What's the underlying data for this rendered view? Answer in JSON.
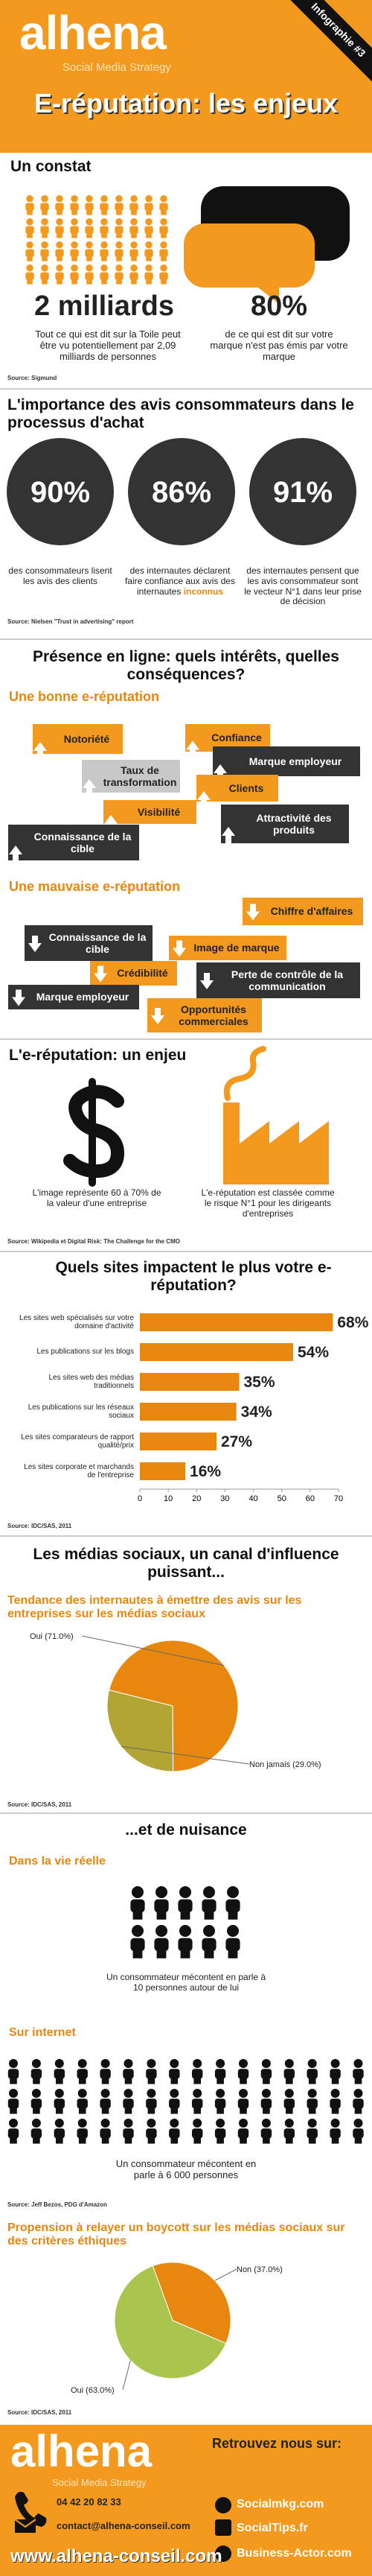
{
  "header": {
    "logo": "alhena",
    "tagline": "Social Media Strategy",
    "ribbon": "Infographie #3",
    "title": "E-réputation: les enjeux"
  },
  "constat": {
    "heading": "Un constat",
    "stats": [
      {
        "value": "2 milliards",
        "text": "Tout ce qui est dit sur la Toile peut être vu potentiellement par 2,09 milliards de personnes"
      },
      {
        "value": "80%",
        "text": "de ce qui est dit sur votre marque n'est pas émis par votre marque"
      }
    ],
    "source": "Source: Sigmund"
  },
  "avis": {
    "heading": "L'importance des avis consommateurs dans le processus d'achat",
    "stats": [
      {
        "value": "90%",
        "text": "des consommateurs lisent les avis des clients"
      },
      {
        "value": "86%",
        "text": "des internautes déclarent faire confiance aux avis des internautes",
        "highlight": "inconnus"
      },
      {
        "value": "91%",
        "text": "des internautes pensent que les avis consommateur sont le vecteur N°1 dans leur prise de décision"
      }
    ],
    "source": "Source: Nielsen \"Trust in advertising\" report"
  },
  "presence": {
    "heading": "Présence en ligne: quels intérêts, quelles conséquences?",
    "good": {
      "title": "Une bonne e-réputation",
      "items": [
        "Notoriété",
        "Confiance",
        "Taux de transformation",
        "Marque employeur",
        "Clients",
        "Visibilité",
        "Attractivité des produits",
        "Connaissance de la cible"
      ]
    },
    "bad": {
      "title": "Une mauvaise e-réputation",
      "items": [
        "Chiffre d'affaires",
        "Connaissance de la cible",
        "Image de marque",
        "Crédibilité",
        "Perte de contrôle de la communication",
        "Marque employeur",
        "Opportunités commerciales"
      ]
    }
  },
  "enjeu": {
    "heading": "L'e-réputation: un enjeu",
    "items": [
      "L'image représente 60 à 70% de la valeur d'une entreprise",
      "L'e-réputation est classée comme le risque N°1 pour les dirigeants d'entreprises"
    ],
    "source": "Source: Wikipedia et Digital Risk: The Challenge for the CMO"
  },
  "medias": {
    "heading": "Les médias sociaux, un canal d'influence puissant..."
  },
  "nuisance": {
    "heading": "...et de nuisance",
    "reel": {
      "title": "Dans la vie réelle",
      "text": "Un consommateur mécontent en parle à 10 personnes autour de lui"
    },
    "internet": {
      "title": "Sur internet",
      "text": "Un consommateur mécontent en parle à 6 000 personnes"
    },
    "source": "Source: Jeff Bezos, PDG d'Amazon"
  },
  "footer": {
    "logo": "alhena",
    "tagline": "Social Media Strategy",
    "phone": "04 42 20 82 33",
    "email": "contact@alhena-conseil.com",
    "website": "www.alhena-conseil.com",
    "follow": "Retrouvez nous sur:",
    "links": [
      "Socialmkg.com",
      "SocialTips.fr",
      "Business-Actor.com"
    ]
  },
  "chart_data": [
    {
      "type": "bar",
      "horizontal": true,
      "title": "Quels sites impactent le plus votre e-réputation?",
      "categories": [
        "Les sites web spécialisés sur votre domaine d'activité",
        "Les publications sur les blogs",
        "Les sites web des médias traditionnels",
        "Les publications sur les réseaux sociaux",
        "Les sites comparateurs de rapport qualité/prix",
        "Les sites corporate et marchands de l'entreprise"
      ],
      "values": [
        68,
        54,
        35,
        34,
        27,
        16
      ],
      "value_labels": [
        "68%",
        "54%",
        "35%",
        "34%",
        "27%",
        "16%"
      ],
      "color": "#e8870e",
      "xlim": [
        0,
        70
      ],
      "xticks": [
        0,
        10,
        20,
        30,
        40,
        50,
        60,
        70
      ],
      "source": "Source: IDC/SAS, 2011"
    },
    {
      "type": "pie",
      "title": "Tendance des internautes à émettre des avis sur les entreprises sur les médias sociaux",
      "values": [
        71.0,
        29.0
      ],
      "value_labels": [
        "Oui (71.0%)",
        "Non jamais (29.0%)"
      ],
      "colors": [
        "#e8870e",
        "#b3a533"
      ],
      "source": "Source: IDC/SAS, 2011"
    },
    {
      "type": "pie",
      "title": "Propension à relayer un boycott sur les médias sociaux sur des critères éthiques",
      "values": [
        37.0,
        63.0
      ],
      "value_labels": [
        "Non (37.0%)",
        "Oui (63.0%)"
      ],
      "colors": [
        "#e8870e",
        "#a9c54d"
      ],
      "source": "Source: IDC/SAS, 2011"
    }
  ]
}
